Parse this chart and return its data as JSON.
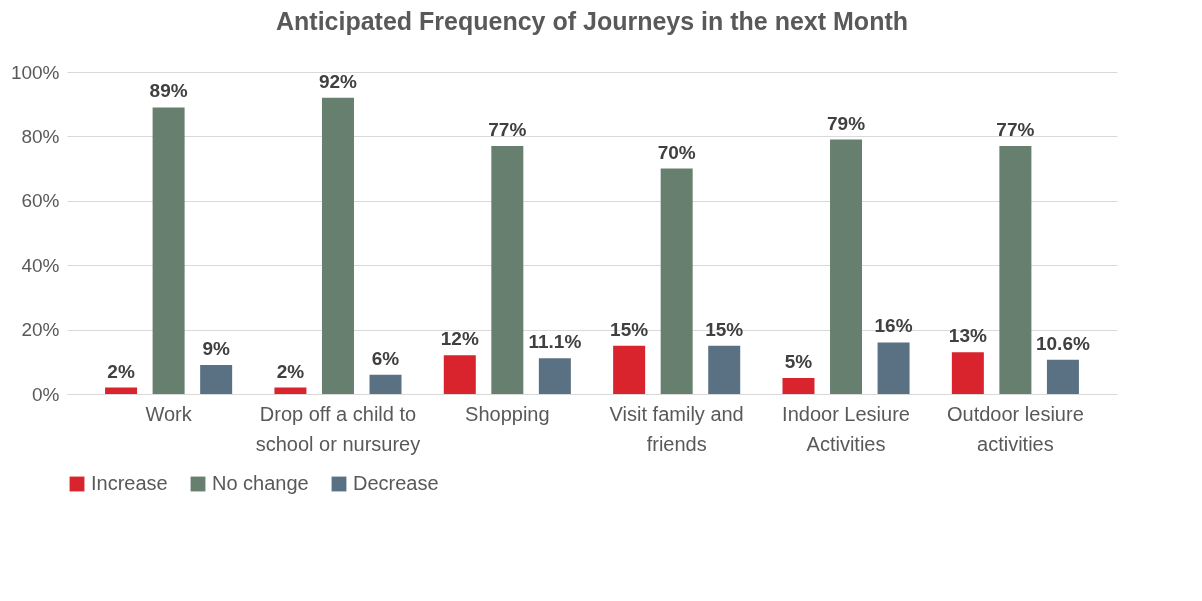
{
  "chart_data": {
    "type": "bar",
    "title": "Anticipated Frequency of Journeys in the next Month",
    "categories": [
      "Work",
      "Drop off a child to school or nursurey",
      "Shopping",
      "Visit family and friends",
      "Indoor Lesiure Activities",
      "Outdoor lesiure activities"
    ],
    "series": [
      {
        "name": "Increase",
        "color": "#d9232d",
        "values": [
          2,
          2,
          12,
          15,
          5,
          13
        ],
        "value_labels": [
          "2%",
          "2%",
          "12%",
          "15%",
          "5%",
          "13%"
        ]
      },
      {
        "name": "No change",
        "color": "#667f6e",
        "values": [
          89,
          92,
          77,
          70,
          79,
          77
        ],
        "value_labels": [
          "89%",
          "92%",
          "77%",
          "70%",
          "79%",
          "77%"
        ]
      },
      {
        "name": "Decrease",
        "color": "#5a7184",
        "values": [
          9,
          6,
          11.1,
          15,
          16,
          10.6
        ],
        "value_labels": [
          "9%",
          "6%",
          "11.1%",
          "15%",
          "16%",
          "10.6%"
        ]
      }
    ],
    "ylim": [
      0,
      100
    ],
    "yticks": [
      {
        "value": 0,
        "label": "0%"
      },
      {
        "value": 20,
        "label": "20%"
      },
      {
        "value": 40,
        "label": "40%"
      },
      {
        "value": 60,
        "label": "60%"
      },
      {
        "value": 80,
        "label": "80%"
      },
      {
        "value": 100,
        "label": "100%"
      }
    ],
    "grid": "y",
    "legend": "bottom"
  }
}
